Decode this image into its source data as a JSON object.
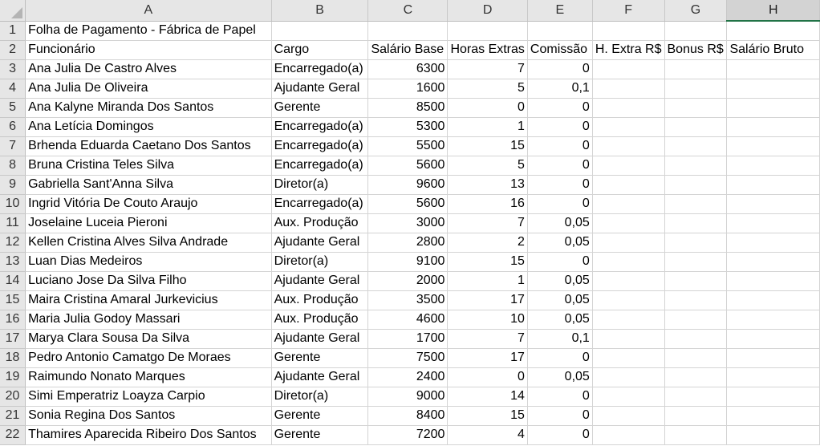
{
  "columns": [
    "A",
    "B",
    "C",
    "D",
    "E",
    "F",
    "G",
    "H"
  ],
  "active_column": "H",
  "title_row": {
    "row": "1",
    "text": "Folha de Pagamento - Fábrica de Papel"
  },
  "header_row": {
    "row": "2",
    "cells": [
      "Funcionário",
      "Cargo",
      "Salário Base",
      "Horas Extras",
      "Comissão",
      "H. Extra R$",
      "Bonus R$",
      "Salário Bruto"
    ]
  },
  "rows": [
    {
      "row": "3",
      "nome": "Ana Julia De Castro Alves",
      "cargo": "Encarregado(a)",
      "salario": "6300",
      "horas": "7",
      "comissao": "0"
    },
    {
      "row": "4",
      "nome": "Ana Julia De Oliveira",
      "cargo": "Ajudante Geral",
      "salario": "1600",
      "horas": "5",
      "comissao": "0,1"
    },
    {
      "row": "5",
      "nome": "Ana Kalyne Miranda Dos Santos",
      "cargo": "Gerente",
      "salario": "8500",
      "horas": "0",
      "comissao": "0"
    },
    {
      "row": "6",
      "nome": "Ana Letícia Domingos",
      "cargo": "Encarregado(a)",
      "salario": "5300",
      "horas": "1",
      "comissao": "0"
    },
    {
      "row": "7",
      "nome": "Brhenda Eduarda Caetano Dos Santos",
      "cargo": "Encarregado(a)",
      "salario": "5500",
      "horas": "15",
      "comissao": "0"
    },
    {
      "row": "8",
      "nome": "Bruna Cristina Teles Silva",
      "cargo": "Encarregado(a)",
      "salario": "5600",
      "horas": "5",
      "comissao": "0"
    },
    {
      "row": "9",
      "nome": "Gabriella Sant'Anna Silva",
      "cargo": "Diretor(a)",
      "salario": "9600",
      "horas": "13",
      "comissao": "0"
    },
    {
      "row": "10",
      "nome": "Ingrid Vitória De Couto Araujo",
      "cargo": "Encarregado(a)",
      "salario": "5600",
      "horas": "16",
      "comissao": "0"
    },
    {
      "row": "11",
      "nome": "Joselaine Luceia Pieroni",
      "cargo": "Aux. Produção",
      "salario": "3000",
      "horas": "7",
      "comissao": "0,05"
    },
    {
      "row": "12",
      "nome": "Kellen Cristina Alves Silva Andrade",
      "cargo": "Ajudante Geral",
      "salario": "2800",
      "horas": "2",
      "comissao": "0,05"
    },
    {
      "row": "13",
      "nome": "Luan Dias Medeiros",
      "cargo": "Diretor(a)",
      "salario": "9100",
      "horas": "15",
      "comissao": "0"
    },
    {
      "row": "14",
      "nome": "Luciano Jose Da Silva Filho",
      "cargo": "Ajudante Geral",
      "salario": "2000",
      "horas": "1",
      "comissao": "0,05"
    },
    {
      "row": "15",
      "nome": "Maira Cristina Amaral Jurkevicius",
      "cargo": "Aux. Produção",
      "salario": "3500",
      "horas": "17",
      "comissao": "0,05"
    },
    {
      "row": "16",
      "nome": "Maria Julia Godoy Massari",
      "cargo": "Aux. Produção",
      "salario": "4600",
      "horas": "10",
      "comissao": "0,05"
    },
    {
      "row": "17",
      "nome": "Marya Clara Sousa Da Silva",
      "cargo": "Ajudante Geral",
      "salario": "1700",
      "horas": "7",
      "comissao": "0,1"
    },
    {
      "row": "18",
      "nome": "Pedro Antonio Camatgo De Moraes",
      "cargo": "Gerente",
      "salario": "7500",
      "horas": "17",
      "comissao": "0"
    },
    {
      "row": "19",
      "nome": "Raimundo Nonato Marques",
      "cargo": "Ajudante Geral",
      "salario": "2400",
      "horas": "0",
      "comissao": "0,05"
    },
    {
      "row": "20",
      "nome": "Simi Emperatriz Loayza Carpio",
      "cargo": "Diretor(a)",
      "salario": "9000",
      "horas": "14",
      "comissao": "0"
    },
    {
      "row": "21",
      "nome": "Sonia Regina Dos Santos",
      "cargo": "Gerente",
      "salario": "8400",
      "horas": "15",
      "comissao": "0"
    },
    {
      "row": "22",
      "nome": "Thamires Aparecida Ribeiro Dos Santos",
      "cargo": "Gerente",
      "salario": "7200",
      "horas": "4",
      "comissao": "0"
    }
  ]
}
